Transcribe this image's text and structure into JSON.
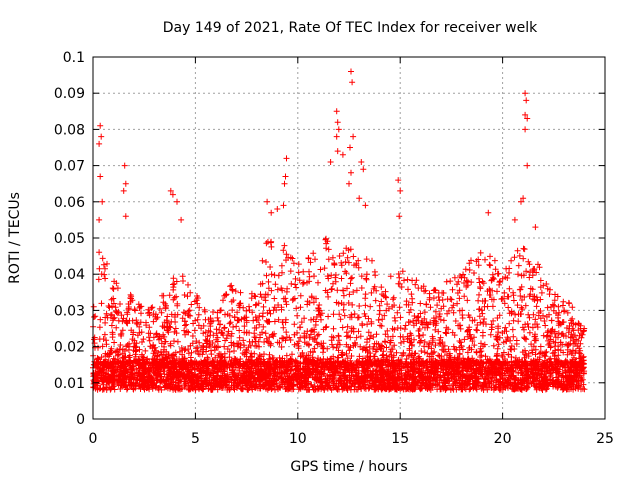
{
  "chart_data": {
    "type": "scatter",
    "title": "Day 149 of 2021, Rate Of TEC Index for receiver welk",
    "xlabel": "GPS time / hours",
    "ylabel": "ROTI / TECUs",
    "xlim": [
      0,
      25
    ],
    "ylim": [
      0,
      0.1
    ],
    "x_ticks": [
      "0",
      "5",
      "10",
      "15",
      "20",
      "25"
    ],
    "y_ticks": [
      "0",
      "0.01",
      "0.02",
      "0.03",
      "0.04",
      "0.05",
      "0.06",
      "0.07",
      "0.08",
      "0.09",
      "0.1"
    ],
    "grid": true,
    "marker": "+",
    "color": "#ff0000",
    "data_range_x": [
      0,
      24
    ],
    "envelope": {
      "x": [
        0,
        0.3,
        0.5,
        1,
        1.5,
        2,
        2.5,
        3,
        3.5,
        4,
        4.5,
        5,
        5.5,
        6,
        6.5,
        7,
        7.5,
        8,
        8.5,
        9,
        9.5,
        10,
        10.5,
        11,
        11.5,
        12,
        12.5,
        13,
        13.5,
        14,
        14.5,
        15,
        15.5,
        16,
        16.5,
        17,
        17.5,
        18,
        18.5,
        19,
        19.5,
        20,
        20.5,
        21,
        21.5,
        22,
        22.5,
        23,
        23.5,
        24
      ],
      "upper": [
        0.03,
        0.05,
        0.045,
        0.04,
        0.035,
        0.035,
        0.03,
        0.032,
        0.035,
        0.04,
        0.04,
        0.035,
        0.03,
        0.03,
        0.035,
        0.04,
        0.03,
        0.04,
        0.05,
        0.05,
        0.05,
        0.045,
        0.045,
        0.05,
        0.05,
        0.045,
        0.05,
        0.045,
        0.045,
        0.04,
        0.04,
        0.042,
        0.04,
        0.038,
        0.035,
        0.038,
        0.04,
        0.042,
        0.045,
        0.047,
        0.045,
        0.04,
        0.045,
        0.05,
        0.045,
        0.04,
        0.035,
        0.035,
        0.03,
        0.025
      ],
      "lower": [
        0.005,
        0.005,
        0.005,
        0.005,
        0.005,
        0.005,
        0.005,
        0.005,
        0.005,
        0.005,
        0.005,
        0.005,
        0.005,
        0.005,
        0.005,
        0.005,
        0.005,
        0.005,
        0.005,
        0.005,
        0.005,
        0.005,
        0.005,
        0.005,
        0.005,
        0.005,
        0.005,
        0.005,
        0.005,
        0.005,
        0.005,
        0.005,
        0.005,
        0.005,
        0.005,
        0.005,
        0.005,
        0.005,
        0.005,
        0.005,
        0.005,
        0.005,
        0.005,
        0.005,
        0.005,
        0.005,
        0.005,
        0.005,
        0.005,
        0.005
      ]
    },
    "outliers": [
      {
        "x": 0.35,
        "y": 0.081
      },
      {
        "x": 0.4,
        "y": 0.078
      },
      {
        "x": 0.3,
        "y": 0.076
      },
      {
        "x": 0.35,
        "y": 0.067
      },
      {
        "x": 0.45,
        "y": 0.06
      },
      {
        "x": 0.3,
        "y": 0.055
      },
      {
        "x": 1.55,
        "y": 0.07
      },
      {
        "x": 1.6,
        "y": 0.065
      },
      {
        "x": 1.5,
        "y": 0.063
      },
      {
        "x": 1.6,
        "y": 0.056
      },
      {
        "x": 3.8,
        "y": 0.063
      },
      {
        "x": 3.9,
        "y": 0.062
      },
      {
        "x": 4.1,
        "y": 0.06
      },
      {
        "x": 4.3,
        "y": 0.055
      },
      {
        "x": 9.45,
        "y": 0.072
      },
      {
        "x": 9.4,
        "y": 0.067
      },
      {
        "x": 9.35,
        "y": 0.065
      },
      {
        "x": 9.3,
        "y": 0.059
      },
      {
        "x": 9.0,
        "y": 0.058
      },
      {
        "x": 8.5,
        "y": 0.06
      },
      {
        "x": 8.7,
        "y": 0.057
      },
      {
        "x": 11.9,
        "y": 0.085
      },
      {
        "x": 11.95,
        "y": 0.082
      },
      {
        "x": 12.0,
        "y": 0.08
      },
      {
        "x": 11.9,
        "y": 0.078
      },
      {
        "x": 11.95,
        "y": 0.074
      },
      {
        "x": 12.2,
        "y": 0.073
      },
      {
        "x": 11.6,
        "y": 0.071
      },
      {
        "x": 12.6,
        "y": 0.096
      },
      {
        "x": 12.65,
        "y": 0.093
      },
      {
        "x": 12.7,
        "y": 0.078
      },
      {
        "x": 12.55,
        "y": 0.075
      },
      {
        "x": 12.6,
        "y": 0.068
      },
      {
        "x": 12.5,
        "y": 0.065
      },
      {
        "x": 13.1,
        "y": 0.071
      },
      {
        "x": 13.2,
        "y": 0.069
      },
      {
        "x": 13.0,
        "y": 0.061
      },
      {
        "x": 13.3,
        "y": 0.059
      },
      {
        "x": 14.9,
        "y": 0.066
      },
      {
        "x": 15.0,
        "y": 0.063
      },
      {
        "x": 14.95,
        "y": 0.056
      },
      {
        "x": 21.1,
        "y": 0.09
      },
      {
        "x": 21.15,
        "y": 0.088
      },
      {
        "x": 21.1,
        "y": 0.084
      },
      {
        "x": 21.2,
        "y": 0.083
      },
      {
        "x": 21.1,
        "y": 0.08
      },
      {
        "x": 21.2,
        "y": 0.07
      },
      {
        "x": 21.0,
        "y": 0.061
      },
      {
        "x": 20.9,
        "y": 0.06
      },
      {
        "x": 21.6,
        "y": 0.053
      },
      {
        "x": 19.3,
        "y": 0.057
      },
      {
        "x": 20.6,
        "y": 0.055
      }
    ]
  }
}
